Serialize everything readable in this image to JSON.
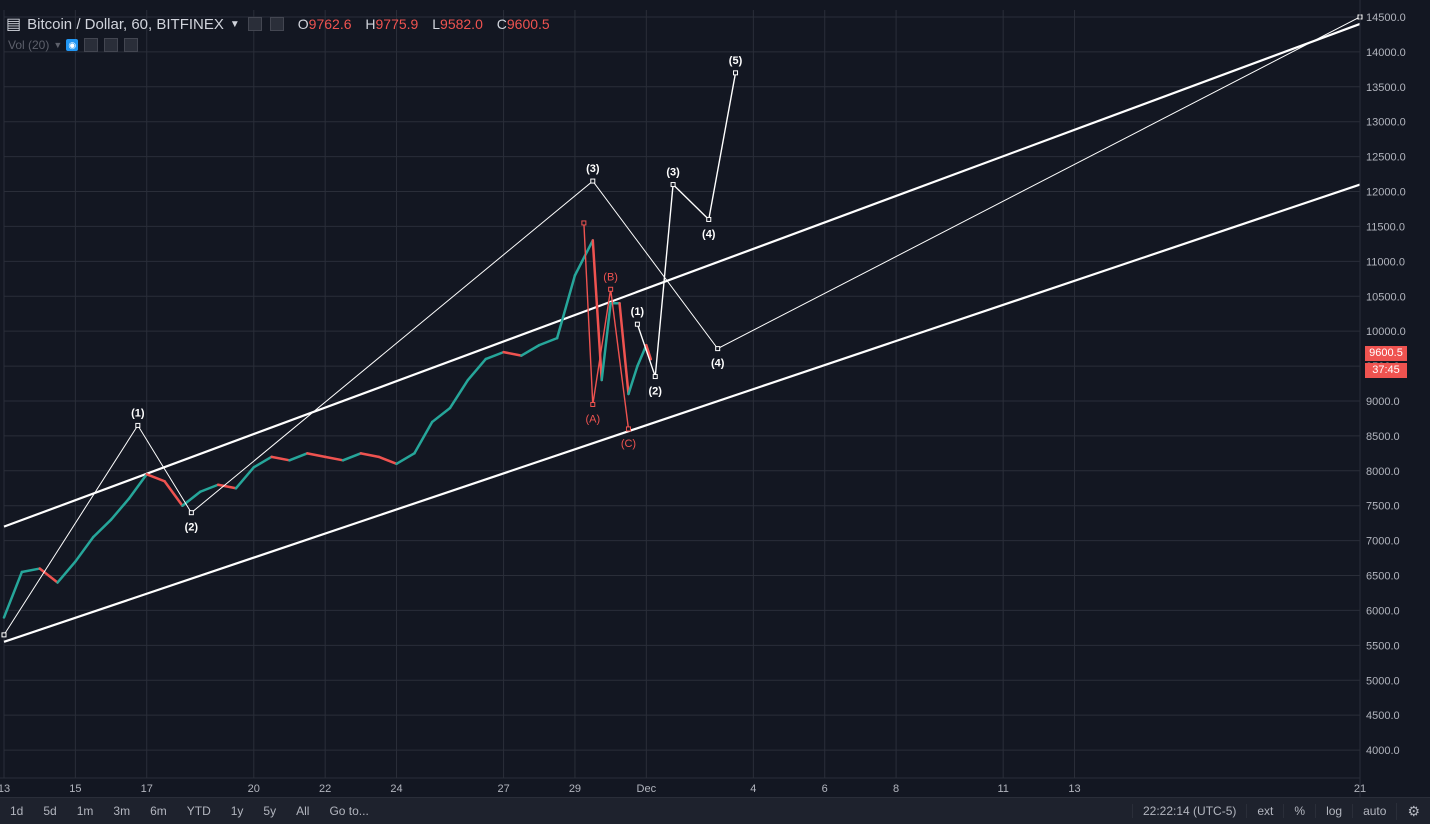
{
  "header": {
    "symbol": "Bitcoin / Dollar, 60, BITFINEX",
    "ohlc": {
      "o_label": "O",
      "o": "9762.6",
      "h_label": "H",
      "h": "9775.9",
      "l_label": "L",
      "l": "9582.0",
      "c_label": "C",
      "c": "9600.5"
    },
    "volume_label": "Vol (20)"
  },
  "price_tag": {
    "price": "9600.5",
    "countdown": "37:45"
  },
  "bottom": {
    "ranges": [
      "1d",
      "5d",
      "1m",
      "3m",
      "6m",
      "YTD",
      "1y",
      "5y",
      "All",
      "Go to..."
    ],
    "clock": "22:22:14 (UTC-5)",
    "options": [
      "ext",
      "%",
      "log",
      "auto"
    ],
    "settings_icon": "gear-icon"
  },
  "colors": {
    "background": "#131722",
    "up": "#26a69a",
    "down": "#ef5350",
    "grid": "#2a2e39",
    "axis_text": "#b2b5be",
    "wave": "#ffffff",
    "correction": "#ef5350"
  },
  "chart_data": {
    "type": "line",
    "x_ticks": [
      "13",
      "15",
      "17",
      "20",
      "22",
      "24",
      "27",
      "29",
      "Dec",
      "4",
      "6",
      "8",
      "11",
      "13",
      "21"
    ],
    "y_ticks": [
      4000,
      4500,
      5000,
      5500,
      6000,
      6500,
      7000,
      7500,
      8000,
      8500,
      9000,
      9500,
      10000,
      10500,
      11000,
      11500,
      12000,
      12500,
      13000,
      13500,
      14000,
      14500
    ],
    "ylim": [
      3600,
      14600
    ],
    "xlim": [
      "Nov 13",
      "Dec 21"
    ],
    "price_path": [
      {
        "x": "Nov 13 00:00",
        "y": 5900
      },
      {
        "x": "Nov 13 12:00",
        "y": 6550
      },
      {
        "x": "Nov 14 00:00",
        "y": 6600
      },
      {
        "x": "Nov 14 12:00",
        "y": 6400
      },
      {
        "x": "Nov 15 00:00",
        "y": 6700
      },
      {
        "x": "Nov 15 12:00",
        "y": 7050
      },
      {
        "x": "Nov 16 00:00",
        "y": 7300
      },
      {
        "x": "Nov 16 12:00",
        "y": 7600
      },
      {
        "x": "Nov 17 00:00",
        "y": 7950
      },
      {
        "x": "Nov 17 12:00",
        "y": 7850
      },
      {
        "x": "Nov 18 00:00",
        "y": 7500
      },
      {
        "x": "Nov 18 12:00",
        "y": 7700
      },
      {
        "x": "Nov 19 00:00",
        "y": 7800
      },
      {
        "x": "Nov 19 12:00",
        "y": 7750
      },
      {
        "x": "Nov 20 00:00",
        "y": 8050
      },
      {
        "x": "Nov 20 12:00",
        "y": 8200
      },
      {
        "x": "Nov 21 00:00",
        "y": 8150
      },
      {
        "x": "Nov 21 12:00",
        "y": 8250
      },
      {
        "x": "Nov 22 00:00",
        "y": 8200
      },
      {
        "x": "Nov 22 12:00",
        "y": 8150
      },
      {
        "x": "Nov 23 00:00",
        "y": 8250
      },
      {
        "x": "Nov 23 12:00",
        "y": 8200
      },
      {
        "x": "Nov 24 00:00",
        "y": 8100
      },
      {
        "x": "Nov 24 12:00",
        "y": 8250
      },
      {
        "x": "Nov 25 00:00",
        "y": 8700
      },
      {
        "x": "Nov 25 12:00",
        "y": 8900
      },
      {
        "x": "Nov 26 00:00",
        "y": 9300
      },
      {
        "x": "Nov 26 12:00",
        "y": 9600
      },
      {
        "x": "Nov 27 00:00",
        "y": 9700
      },
      {
        "x": "Nov 27 12:00",
        "y": 9650
      },
      {
        "x": "Nov 28 00:00",
        "y": 9800
      },
      {
        "x": "Nov 28 12:00",
        "y": 9900
      },
      {
        "x": "Nov 29 00:00",
        "y": 10800
      },
      {
        "x": "Nov 29 12:00",
        "y": 11300
      },
      {
        "x": "Nov 29 18:00",
        "y": 9300
      },
      {
        "x": "Nov 30 00:00",
        "y": 10400
      },
      {
        "x": "Nov 30 06:00",
        "y": 10400
      },
      {
        "x": "Nov 30 12:00",
        "y": 9100
      },
      {
        "x": "Nov 30 18:00",
        "y": 9500
      },
      {
        "x": "Dec 01 00:00",
        "y": 9800
      },
      {
        "x": "Dec 01 03:00",
        "y": 9600
      }
    ],
    "channel_lines": [
      {
        "name": "upper",
        "points": [
          {
            "x": "Nov 13 00:00",
            "y": 7200
          },
          {
            "x": "Dec 21 00:00",
            "y": 14400
          }
        ]
      },
      {
        "name": "lower",
        "points": [
          {
            "x": "Nov 13 00:00",
            "y": 5550
          },
          {
            "x": "Dec 21 00:00",
            "y": 12100
          }
        ]
      }
    ],
    "wave_paths": [
      {
        "style": "major",
        "points": [
          {
            "x": "Nov 13 00:00",
            "y": 5650,
            "label": ""
          },
          {
            "x": "Nov 16 18:00",
            "y": 8650,
            "label": "(1)"
          },
          {
            "x": "Nov 18 06:00",
            "y": 7400,
            "label": "(2)"
          },
          {
            "x": "Nov 29 12:00",
            "y": 12150,
            "label": "(3)"
          },
          {
            "x": "Dec 03 00:00",
            "y": 9750,
            "label": "(4)"
          },
          {
            "x": "Dec 21 00:00",
            "y": 14500,
            "label": ""
          }
        ]
      },
      {
        "style": "projection",
        "points": [
          {
            "x": "Nov 30 18:00",
            "y": 10100,
            "label": "(1)"
          },
          {
            "x": "Dec 01 06:00",
            "y": 9350,
            "label": "(2)"
          },
          {
            "x": "Dec 01 18:00",
            "y": 12100,
            "label": "(3)"
          },
          {
            "x": "Dec 02 18:00",
            "y": 11600,
            "label": "(4)"
          },
          {
            "x": "Dec 03 12:00",
            "y": 13700,
            "label": "(5)"
          }
        ]
      },
      {
        "style": "correction",
        "points": [
          {
            "x": "Nov 29 06:00",
            "y": 11550,
            "label": ""
          },
          {
            "x": "Nov 29 12:00",
            "y": 8950,
            "label": "(A)"
          },
          {
            "x": "Nov 30 00:00",
            "y": 10600,
            "label": "(B)"
          },
          {
            "x": "Nov 30 12:00",
            "y": 8600,
            "label": "(C)"
          }
        ]
      }
    ]
  }
}
